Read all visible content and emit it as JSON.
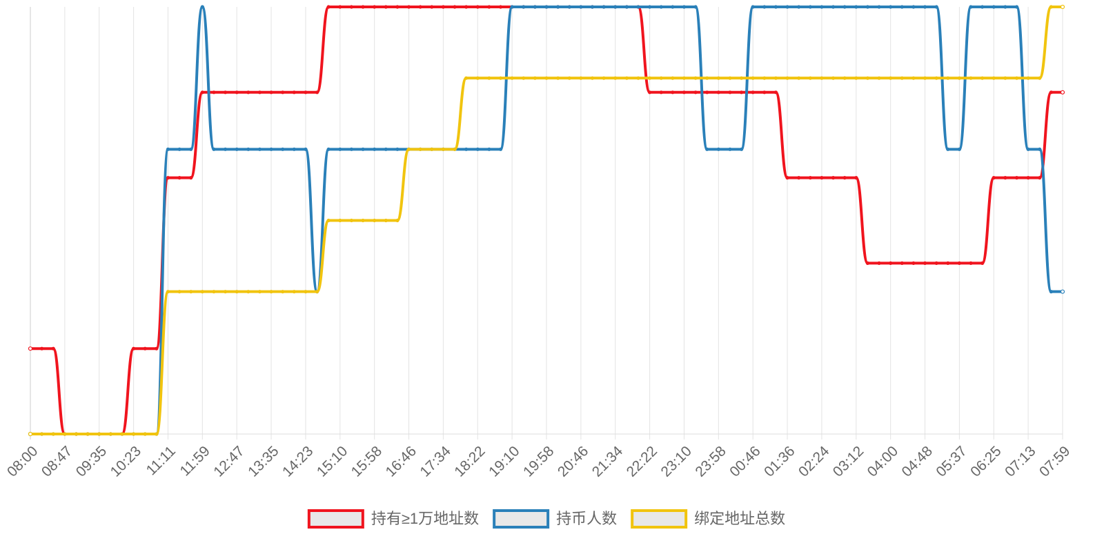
{
  "chart_data": {
    "type": "line",
    "categories": [
      "08:00",
      null,
      null,
      "08:47",
      null,
      null,
      "09:35",
      null,
      null,
      "10:23",
      null,
      null,
      "11:11",
      null,
      null,
      "11:59",
      null,
      null,
      "12:47",
      null,
      null,
      "13:35",
      null,
      null,
      "14:23",
      null,
      null,
      "15:10",
      null,
      null,
      "15:58",
      null,
      null,
      "16:46",
      null,
      null,
      "17:34",
      null,
      null,
      "18:22",
      null,
      null,
      "19:10",
      null,
      null,
      "19:58",
      null,
      null,
      "20:46",
      null,
      null,
      "21:34",
      null,
      null,
      "22:22",
      null,
      null,
      "23:10",
      null,
      null,
      "23:58",
      null,
      null,
      "00:46",
      null,
      null,
      "01:36",
      null,
      null,
      "02:24",
      null,
      null,
      "03:12",
      null,
      null,
      "04:00",
      null,
      null,
      "04:48",
      null,
      null,
      "05:37",
      null,
      null,
      "06:25",
      null,
      null,
      "07:13",
      null,
      null,
      "07:59"
    ],
    "series": [
      {
        "name": "持有≥1万地址数",
        "color": "#f0141e",
        "ylim": [
          0,
          5
        ],
        "values": [
          1,
          1,
          1,
          0,
          0,
          0,
          0,
          0,
          0,
          1,
          1,
          1,
          3,
          3,
          3,
          4,
          4,
          4,
          4,
          4,
          4,
          4,
          4,
          4,
          4,
          4,
          5,
          5,
          5,
          5,
          5,
          5,
          5,
          5,
          5,
          5,
          5,
          5,
          5,
          5,
          5,
          5,
          5,
          5,
          5,
          5,
          5,
          5,
          5,
          5,
          5,
          5,
          5,
          5,
          4,
          4,
          4,
          4,
          4,
          4,
          4,
          4,
          4,
          4,
          4,
          4,
          3,
          3,
          3,
          3,
          3,
          3,
          3,
          2,
          2,
          2,
          2,
          2,
          2,
          2,
          2,
          2,
          2,
          2,
          3,
          3,
          3,
          3,
          3,
          4,
          4
        ]
      },
      {
        "name": "持币人数",
        "color": "#2a80b9",
        "ylim": [
          0,
          3
        ],
        "values": [
          0,
          0,
          0,
          0,
          0,
          0,
          0,
          0,
          0,
          0,
          0,
          0,
          2,
          2,
          2,
          3,
          2,
          2,
          2,
          2,
          2,
          2,
          2,
          2,
          2,
          1,
          2,
          2,
          2,
          2,
          2,
          2,
          2,
          2,
          2,
          2,
          2,
          2,
          2,
          2,
          2,
          2,
          3,
          3,
          3,
          3,
          3,
          3,
          3,
          3,
          3,
          3,
          3,
          3,
          3,
          3,
          3,
          3,
          3,
          2,
          2,
          2,
          2,
          3,
          3,
          3,
          3,
          3,
          3,
          3,
          3,
          3,
          3,
          3,
          3,
          3,
          3,
          3,
          3,
          3,
          2,
          2,
          3,
          3,
          3,
          3,
          3,
          2,
          2,
          1,
          1
        ]
      },
      {
        "name": "绑定地址总数",
        "color": "#f1c40f",
        "ylim": [
          0,
          6
        ],
        "values": [
          0,
          0,
          0,
          0,
          0,
          0,
          0,
          0,
          0,
          0,
          0,
          0,
          2,
          2,
          2,
          2,
          2,
          2,
          2,
          2,
          2,
          2,
          2,
          2,
          2,
          2,
          3,
          3,
          3,
          3,
          3,
          3,
          3,
          4,
          4,
          4,
          4,
          4,
          5,
          5,
          5,
          5,
          5,
          5,
          5,
          5,
          5,
          5,
          5,
          5,
          5,
          5,
          5,
          5,
          5,
          5,
          5,
          5,
          5,
          5,
          5,
          5,
          5,
          5,
          5,
          5,
          5,
          5,
          5,
          5,
          5,
          5,
          5,
          5,
          5,
          5,
          5,
          5,
          5,
          5,
          5,
          5,
          5,
          5,
          5,
          5,
          5,
          5,
          5,
          6,
          6
        ]
      }
    ],
    "grid": true
  }
}
